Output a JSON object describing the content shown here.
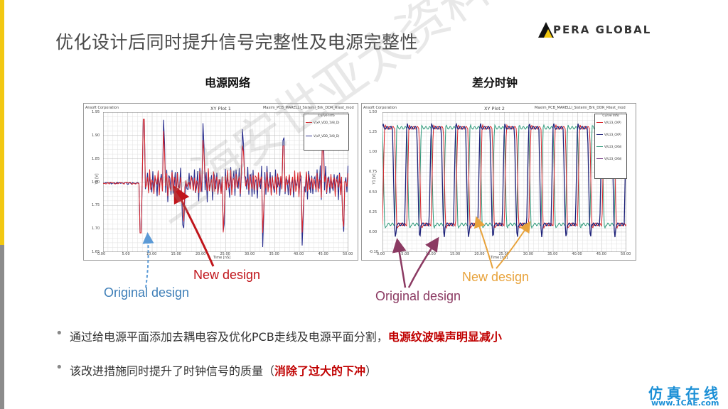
{
  "slide": {
    "title": "优化设计后同时提升信号完整性及电源完整性",
    "logo_text": "PERA GLOBAL"
  },
  "plots": {
    "left": {
      "heading": "电源网络",
      "company": "Ansoft Corporation",
      "plot_name": "XY Plot 1",
      "design_name": "Maxim_PCB_MARELLI_Sistemi_Brk_DDR_Rtest_mod",
      "legend_title": "Curve Info",
      "legend_items": [
        "V(xP_VDD_1V8_D)",
        "V(xP_VDD_1V8_D)"
      ],
      "xlabel": "Time [nS]",
      "ylabel": "Y1 [V]",
      "x_ticks": [
        "0.00",
        "5.00",
        "10.00",
        "15.00",
        "20.00",
        "25.00",
        "30.00",
        "35.00",
        "40.00",
        "45.00",
        "50.00"
      ],
      "y_ticks": [
        "1.95",
        "1.90",
        "1.85",
        "1.80",
        "1.75",
        "1.70",
        "1.65"
      ]
    },
    "right": {
      "heading": "差分时钟",
      "company": "Ansoft Corporation",
      "plot_name": "XY Plot 2",
      "design_name": "Maxim_PCB_MARELLI_Sistemi_Brk_DDR_Rtest_mod",
      "legend_title": "Curve Info",
      "legend_items": [
        "V(U23_CKP)",
        "V(U23_CKP)",
        "V(U23_CKN)",
        "V(U23_CKN)"
      ],
      "xlabel": "Time [nS]",
      "ylabel": "Y1 [V]",
      "x_ticks": [
        "0.00",
        "5.00",
        "10.00",
        "15.00",
        "20.00",
        "25.00",
        "30.00",
        "35.00",
        "40.00",
        "45.00",
        "50.00"
      ],
      "y_ticks": [
        "1.50",
        "1.25",
        "1.00",
        "0.75",
        "0.50",
        "0.25",
        "0.00",
        "-0.10"
      ]
    }
  },
  "annotations": {
    "left_new": "New design",
    "left_original": "Original design",
    "right_new": "New design",
    "right_original": "Original design",
    "colors": {
      "new_red": "#c0151b",
      "original_blue": "#3f7fb8",
      "original_purple": "#8b3a62",
      "new_orange": "#e8a33c"
    }
  },
  "bullets": {
    "b1_text": "通过给电源平面添加去耦电容及优化PCB走线及电源平面分割，",
    "b1_highlight": "电源纹波噪声明显减小",
    "b2_text": "该改进措施同时提升了时钟信号的质量（",
    "b2_highlight": "消除了过大的下冲",
    "b2_end": "）"
  },
  "watermark": {
    "diagonal": "上海安世亚太资料分享",
    "corner_top": "仿真在线",
    "corner_bottom": "www.1CAE.com"
  }
}
